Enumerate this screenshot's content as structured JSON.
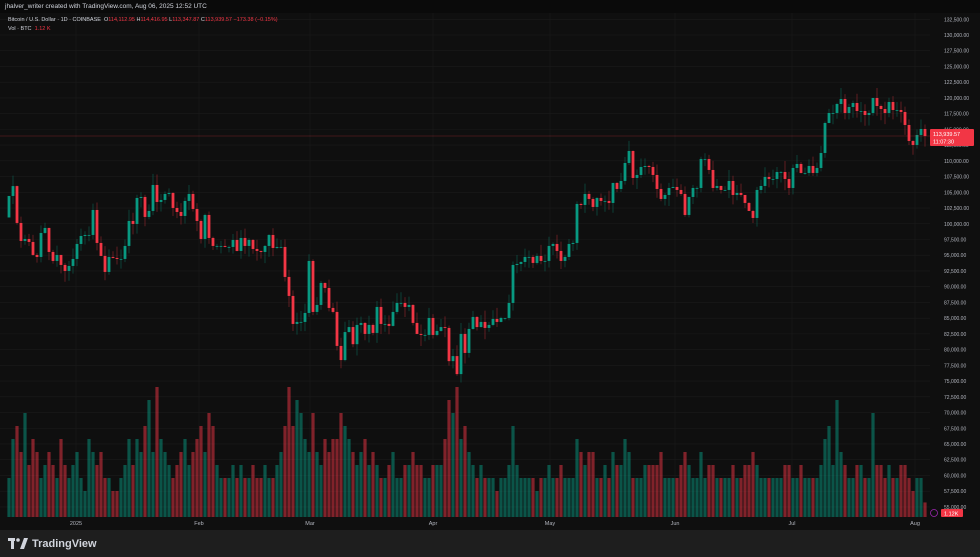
{
  "header": {
    "attribution": "jhalver_writer created with TradingView.com, Aug 06, 2025 12:52 UTC"
  },
  "legend": {
    "symbol": "Bitcoin / U.S. Dollar · 1D · COINBASE",
    "o_label": "O",
    "o": "114,112.95",
    "h_label": "H",
    "h": "114,416.95",
    "l_label": "L",
    "l": "113,347.87",
    "c_label": "C",
    "c": "113,939.57",
    "change": "−173.38 (−0.15%)",
    "vol_label": "Vol · BTC",
    "vol": "1.12 K"
  },
  "price_axis": {
    "labels": [
      "132,500.00",
      "130,000.00",
      "127,500.00",
      "125,000.00",
      "122,500.00",
      "120,000.00",
      "117,500.00",
      "115,000.00",
      "112,500.00",
      "110,000.00",
      "107,500.00",
      "105,000.00",
      "102,500.00",
      "100,000.00",
      "97,500.00",
      "95,000.00",
      "92,500.00",
      "90,000.00",
      "87,500.00",
      "85,000.00",
      "82,500.00",
      "80,000.00",
      "77,500.00",
      "75,000.00",
      "72,500.00",
      "70,000.00",
      "67,500.00",
      "65,000.00",
      "62,500.00",
      "60,000.00",
      "57,500.00",
      "55,000.00"
    ],
    "last_price": "113,939.57",
    "countdown": "11:07:30",
    "last_volume": "1.12K"
  },
  "time_axis": {
    "labels": [
      "2025",
      "Feb",
      "Mar",
      "Apr",
      "May",
      "Jun",
      "Jul",
      "Aug"
    ]
  },
  "footer": {
    "brand": "TradingView"
  },
  "colors": {
    "up": "#089981",
    "down": "#f23645",
    "bg": "#0f0f0f"
  },
  "chart_data": {
    "type": "candlestick",
    "symbol": "BTCUSD",
    "interval": "1D",
    "price_range": [
      55000,
      132500
    ],
    "first_open": 101000,
    "closes": [
      104418,
      105987,
      100127,
      97267,
      97585,
      97108,
      95042,
      94725,
      98539,
      99333,
      95519,
      94089,
      95042,
      93453,
      92500,
      93294,
      94407,
      96790,
      98062,
      98220,
      98220,
      102193,
      96949,
      94884,
      92341,
      94725,
      94566,
      94407,
      94407,
      96473,
      100445,
      99968,
      104100,
      104259,
      101081,
      102036,
      106166,
      103465,
      103782,
      104736,
      104895,
      102511,
      101875,
      101240,
      103624,
      104736,
      102352,
      100445,
      97585,
      101399,
      97744,
      96473,
      96473,
      96473,
      96314,
      96314,
      97426,
      95678,
      97744,
      96473,
      97426,
      95996,
      95678,
      95519,
      96473,
      98220,
      96155,
      96314,
      96314,
      91547,
      88528,
      84078,
      84396,
      84396,
      85826,
      94089,
      85985,
      87097,
      90593,
      89799,
      86621,
      85985,
      80583,
      78338,
      82787,
      83582,
      80861,
      83920,
      84237,
      82489,
      83920,
      82650,
      86780,
      84078,
      84078,
      83761,
      85985,
      87415,
      87415,
      86780,
      87097,
      84237,
      82489,
      82330,
      82330,
      85029,
      82330,
      82966,
      83582,
      83443,
      78169,
      78968,
      76108,
      82489,
      79470,
      83284,
      85189,
      83582,
      84396,
      83443,
      83920,
      84872,
      84396,
      85029,
      85029,
      87415,
      93453,
      93612,
      93930,
      94725,
      94725,
      93771,
      94884,
      94089,
      94089,
      96473,
      96790,
      95678,
      94089,
      94725,
      96790,
      96949,
      103146,
      102988,
      104736,
      103943,
      102670,
      104100,
      103624,
      103624,
      103306,
      106484,
      105530,
      106801,
      109661,
      111568,
      107278,
      107755,
      109026,
      109185,
      109026,
      107755,
      105530,
      103943,
      104577,
      105689,
      105848,
      105371,
      104736,
      101399,
      104259,
      105689,
      105689,
      110297,
      110297,
      108549,
      105689,
      106007,
      105371,
      105371,
      106801,
      104577,
      104895,
      104577,
      103306,
      102036,
      100922,
      105371,
      106007,
      107437,
      107119,
      107119,
      108231,
      108231,
      107119,
      105689,
      108867,
      109502,
      108072,
      108072,
      109185,
      108072,
      108867,
      111250,
      116017,
      117606,
      117606,
      119036,
      119831,
      117606,
      118559,
      119195,
      117923,
      117923,
      117288,
      117606,
      119990,
      118718,
      118241,
      117606,
      119354,
      118082,
      118082,
      117765,
      115700,
      113157,
      112521,
      114110,
      115064,
      113939.57
    ],
    "volume_k": [
      3,
      6,
      7,
      5,
      8,
      4,
      6,
      5,
      3,
      4,
      5,
      4,
      3,
      6,
      4,
      3,
      4,
      5,
      3,
      2,
      6,
      5,
      4,
      5,
      3,
      3,
      2,
      2,
      3,
      4,
      6,
      4,
      6,
      5,
      7,
      9,
      5,
      10,
      6,
      5,
      4,
      3,
      4,
      5,
      6,
      4,
      5,
      6,
      7,
      5,
      8,
      7,
      4,
      3,
      3,
      3,
      4,
      3,
      4,
      3,
      3,
      4,
      3,
      3,
      4,
      3,
      3,
      4,
      5,
      7,
      10,
      7,
      9,
      8,
      6,
      5,
      8,
      5,
      4,
      6,
      5,
      6,
      6,
      8,
      7,
      6,
      5,
      4,
      5,
      6,
      4,
      5,
      4,
      3,
      3,
      4,
      5,
      3,
      3,
      4,
      4,
      5,
      4,
      4,
      3,
      3,
      4,
      4,
      4,
      6,
      9,
      8,
      10,
      6,
      7,
      5,
      4,
      3,
      4,
      3,
      3,
      3,
      2,
      3,
      3,
      4,
      7,
      4,
      3,
      3,
      3,
      3,
      2,
      3,
      3,
      4,
      3,
      3,
      4,
      3,
      3,
      3,
      6,
      5,
      4,
      5,
      5,
      3,
      3,
      4,
      3,
      5,
      4,
      4,
      6,
      5,
      3,
      3,
      3,
      4,
      4,
      4,
      4,
      5,
      3,
      3,
      3,
      3,
      4,
      5,
      4,
      3,
      3,
      5,
      3,
      4,
      4,
      3,
      3,
      3,
      3,
      4,
      3,
      3,
      4,
      4,
      5,
      4,
      3,
      3,
      3,
      3,
      3,
      3,
      4,
      4,
      3,
      3,
      4,
      3,
      3,
      3,
      3,
      4,
      6,
      7,
      4,
      9,
      5,
      4,
      3,
      3,
      4,
      4,
      3,
      3,
      8,
      4,
      4,
      3,
      4,
      3,
      3,
      4,
      4,
      3,
      2,
      3,
      3,
      1.12
    ]
  }
}
